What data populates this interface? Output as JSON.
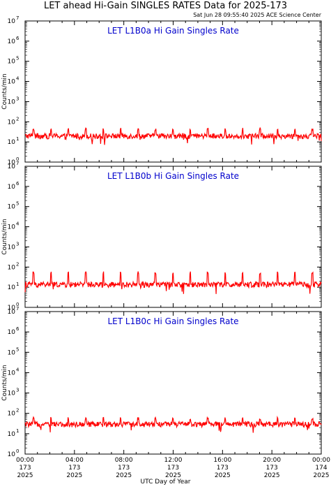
{
  "title": "LET ahead Hi-Gain SINGLES RATES Data for 2025-173",
  "timestamp": "Sat Jun 28 09:55:40 2025 ACE Science Center",
  "xlabel": "UTC Day of Year",
  "colors": {
    "trace": "#ff0000",
    "panel_title": "#0000cc",
    "axes": "#000000"
  },
  "chart_data": [
    {
      "type": "line",
      "title": "LET L1B0a Hi Gain Singles Rate",
      "ylabel": "Counts/min",
      "yscale": "log",
      "ylim": [
        1,
        10000000
      ],
      "ytick_exponents": [
        0,
        1,
        2,
        3,
        4,
        5,
        6,
        7
      ],
      "xlim": [
        "00:00 173 2025",
        "00:00 174 2025"
      ],
      "series": [
        {
          "baseline": 20,
          "spike_peak": 45,
          "spike_count": 17,
          "min": 7
        }
      ]
    },
    {
      "type": "line",
      "title": "LET L1B0b Hi Gain Singles Rate",
      "ylabel": "Counts/min",
      "yscale": "log",
      "ylim": [
        1,
        10000000
      ],
      "ytick_exponents": [
        0,
        1,
        2,
        3,
        4,
        5,
        6,
        7
      ],
      "xlim": [
        "00:00 173 2025",
        "00:00 174 2025"
      ],
      "series": [
        {
          "baseline": 14,
          "spike_peak": 55,
          "spike_count": 17,
          "min": 4
        }
      ]
    },
    {
      "type": "line",
      "title": "LET L1B0c Hi Gain Singles Rate",
      "ylabel": "Counts/min",
      "yscale": "log",
      "ylim": [
        1,
        10000000
      ],
      "ytick_exponents": [
        0,
        1,
        2,
        3,
        4,
        5,
        6,
        7
      ],
      "xlim": [
        "00:00 173 2025",
        "00:00 174 2025"
      ],
      "series": [
        {
          "baseline": 30,
          "spike_peak": 60,
          "spike_count": 17,
          "min": 10
        }
      ]
    }
  ],
  "xticks": [
    {
      "time": "00:00",
      "doy": "173",
      "year": "2025"
    },
    {
      "time": "04:00",
      "doy": "173",
      "year": "2025"
    },
    {
      "time": "08:00",
      "doy": "173",
      "year": "2025"
    },
    {
      "time": "12:00",
      "doy": "173",
      "year": "2025"
    },
    {
      "time": "16:00",
      "doy": "173",
      "year": "2025"
    },
    {
      "time": "20:00",
      "doy": "173",
      "year": "2025"
    },
    {
      "time": "00:00",
      "doy": "174",
      "year": "2025"
    }
  ]
}
